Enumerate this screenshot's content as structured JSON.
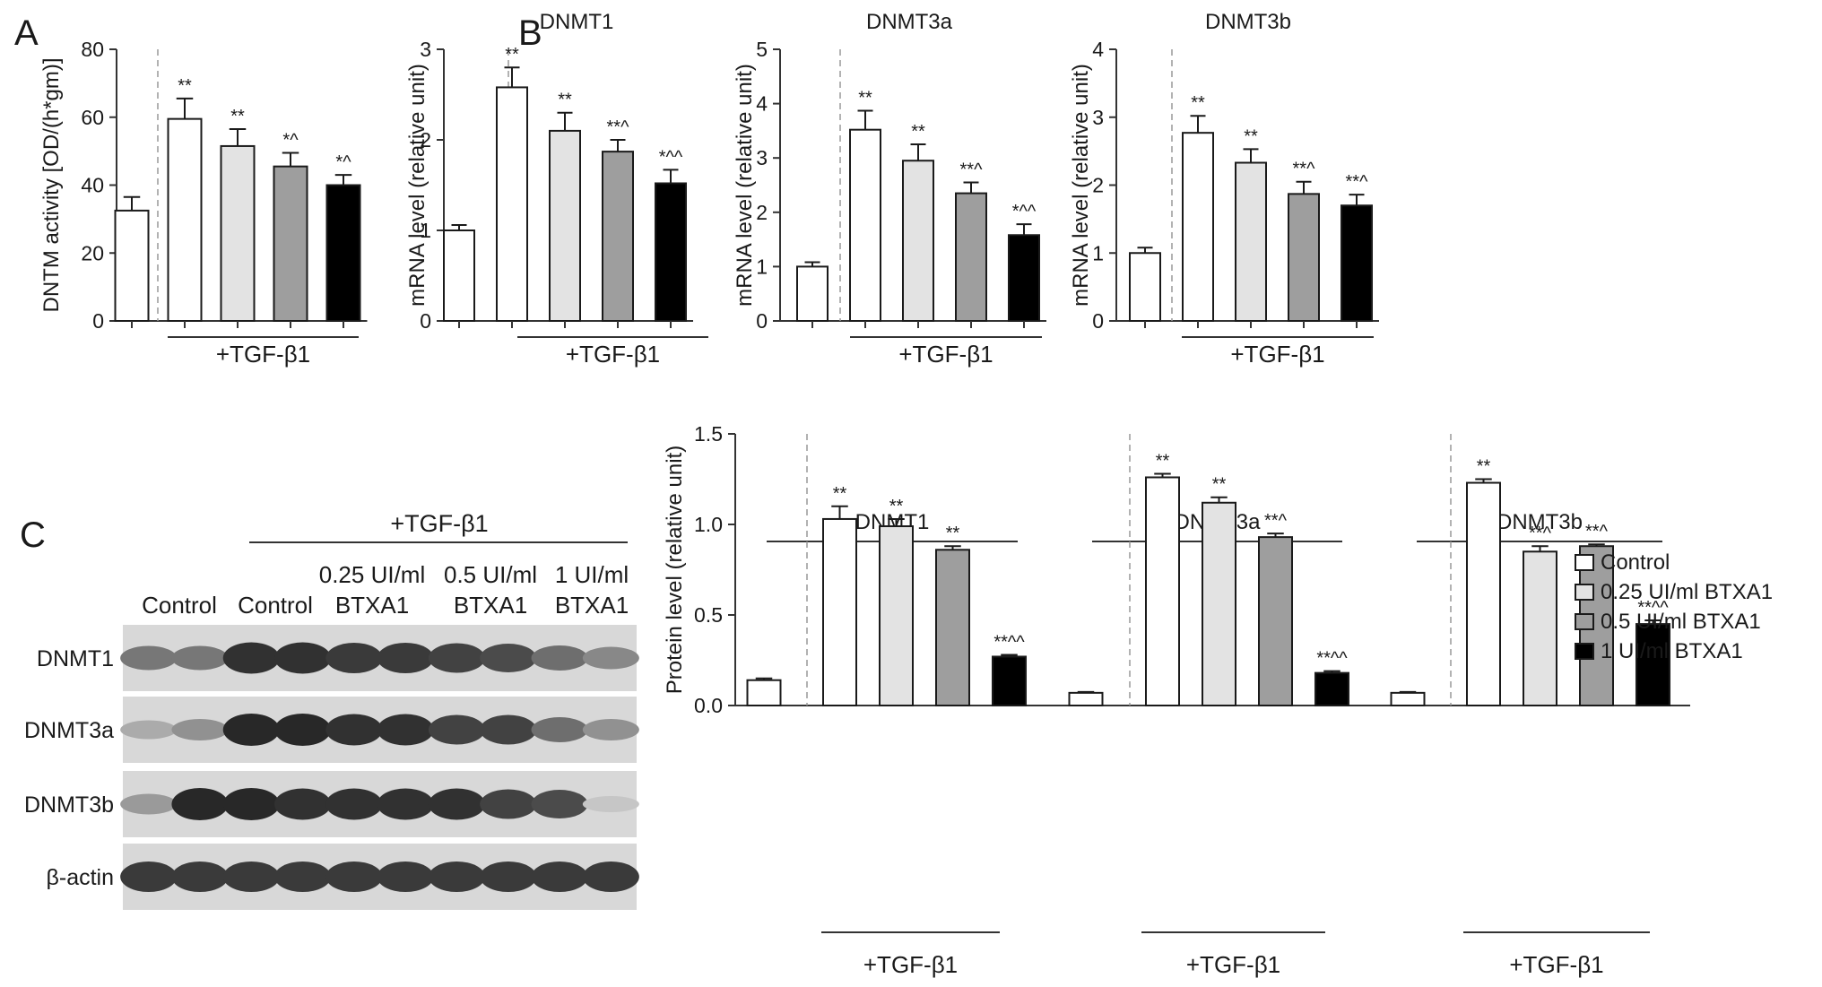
{
  "figure": {
    "panel_labels": [
      "A",
      "B",
      "C"
    ],
    "treatment_label": "+TGF-β1",
    "blot": {
      "lane_headers": [
        {
          "lines": [
            "Control"
          ]
        },
        {
          "lines": [
            "Control"
          ]
        },
        {
          "lines": [
            "0.25 UI/ml",
            "BTXA1"
          ]
        },
        {
          "lines": [
            "0.5 UI/ml",
            "BTXA1"
          ]
        },
        {
          "lines": [
            "1 UI/ml",
            "BTXA1"
          ]
        }
      ],
      "rows": [
        "DNMT1",
        "DNMT3a",
        "DNMT3b",
        "β-actin"
      ],
      "band_intensity": [
        [
          0.55,
          0.55,
          0.95,
          0.95,
          0.9,
          0.9,
          0.85,
          0.8,
          0.6,
          0.45
        ],
        [
          0.25,
          0.4,
          1.0,
          1.0,
          0.95,
          0.95,
          0.85,
          0.85,
          0.6,
          0.4
        ],
        [
          0.35,
          1.0,
          1.0,
          0.95,
          0.95,
          0.95,
          0.95,
          0.85,
          0.8,
          0.1
        ],
        [
          0.9,
          0.9,
          0.9,
          0.9,
          0.9,
          0.9,
          0.9,
          0.9,
          0.9,
          0.9
        ]
      ]
    },
    "legend": {
      "items": [
        "Control",
        "0.25 UI/ml BTXA1",
        "0.5 UI/ml BTXA1",
        "1 UI/ml BTXA1"
      ],
      "colors": [
        "#ffffff",
        "#e3e3e3",
        "#9e9e9e",
        "#000000"
      ]
    }
  },
  "chart_data": [
    {
      "id": "A",
      "type": "bar",
      "title": "",
      "ylabel": "DNTM activity [OD/(h*gm)]",
      "ylim": [
        0,
        80
      ],
      "yticks": [
        "0",
        "20",
        "40",
        "60",
        "80"
      ],
      "values": [
        32.5,
        59.5,
        51.5,
        45.5,
        40
      ],
      "errors": [
        4,
        6,
        5,
        4,
        3
      ],
      "sig": [
        "",
        "**",
        "**",
        "*^",
        "*^"
      ],
      "colors": [
        "#ffffff",
        "#ffffff",
        "#e3e3e3",
        "#9e9e9e",
        "#000000"
      ]
    },
    {
      "id": "B1",
      "type": "bar",
      "title": "DNMT1",
      "ylabel": "mRNA level (relative unit)",
      "ylim": [
        0,
        3
      ],
      "yticks": [
        "0",
        "1",
        "2",
        "3"
      ],
      "values": [
        1.0,
        2.58,
        2.1,
        1.87,
        1.52
      ],
      "errors": [
        0.06,
        0.22,
        0.2,
        0.13,
        0.15
      ],
      "sig": [
        "",
        "**",
        "**",
        "**^",
        "*^^"
      ],
      "colors": [
        "#ffffff",
        "#ffffff",
        "#e3e3e3",
        "#9e9e9e",
        "#000000"
      ]
    },
    {
      "id": "B2",
      "type": "bar",
      "title": "DNMT3a",
      "ylabel": "mRNA level (relative unit)",
      "ylim": [
        0,
        5
      ],
      "yticks": [
        "0",
        "1",
        "2",
        "3",
        "4",
        "5"
      ],
      "values": [
        1.0,
        3.52,
        2.95,
        2.35,
        1.58
      ],
      "errors": [
        0.08,
        0.35,
        0.3,
        0.2,
        0.2
      ],
      "sig": [
        "",
        "**",
        "**",
        "**^",
        "*^^"
      ],
      "colors": [
        "#ffffff",
        "#ffffff",
        "#e3e3e3",
        "#9e9e9e",
        "#000000"
      ]
    },
    {
      "id": "B3",
      "type": "bar",
      "title": "DNMT3b",
      "ylabel": "mRNA level (relative unit)",
      "ylim": [
        0,
        4
      ],
      "yticks": [
        "0",
        "1",
        "2",
        "3",
        "4"
      ],
      "values": [
        1.0,
        2.77,
        2.33,
        1.87,
        1.7
      ],
      "errors": [
        0.08,
        0.25,
        0.2,
        0.18,
        0.16
      ],
      "sig": [
        "",
        "**",
        "**",
        "**^",
        "**^"
      ],
      "colors": [
        "#ffffff",
        "#ffffff",
        "#e3e3e3",
        "#9e9e9e",
        "#000000"
      ]
    },
    {
      "id": "C",
      "type": "bar",
      "title": "",
      "ylabel": "Protein level (relative unit)",
      "ylim": [
        0,
        1.5
      ],
      "yticks": [
        "0.0",
        "0.5",
        "1.0",
        "1.5"
      ],
      "groups": [
        {
          "name": "DNMT1",
          "values": [
            0.14,
            1.03,
            0.99,
            0.86,
            0.27
          ],
          "errors": [
            0.01,
            0.07,
            0.04,
            0.02,
            0.01
          ],
          "sig": [
            "",
            "**",
            "**",
            "**",
            "**^^"
          ]
        },
        {
          "name": "DNMT3a",
          "values": [
            0.07,
            1.26,
            1.12,
            0.93,
            0.18
          ],
          "errors": [
            0.005,
            0.02,
            0.03,
            0.02,
            0.01
          ],
          "sig": [
            "",
            "**",
            "**",
            "**^",
            "**^^"
          ]
        },
        {
          "name": "DNMT3b",
          "values": [
            0.07,
            1.23,
            0.85,
            0.88,
            0.45
          ],
          "errors": [
            0.005,
            0.02,
            0.03,
            0.01,
            0.02
          ],
          "sig": [
            "",
            "**",
            "**^",
            "**^",
            "**^^"
          ]
        }
      ],
      "colors": [
        "#ffffff",
        "#ffffff",
        "#e3e3e3",
        "#9e9e9e",
        "#000000"
      ]
    }
  ]
}
